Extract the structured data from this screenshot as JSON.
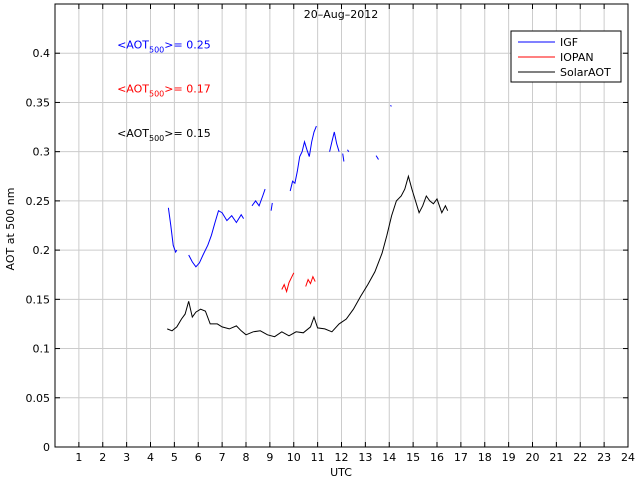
{
  "chart_data": {
    "type": "line",
    "title": "20–Aug–2012",
    "xlabel": "UTC",
    "ylabel": "AOT at 500 nm",
    "xlim": [
      0,
      24
    ],
    "ylim": [
      0,
      0.45
    ],
    "xticks": [
      1,
      2,
      3,
      4,
      5,
      6,
      7,
      8,
      9,
      10,
      11,
      12,
      13,
      14,
      15,
      16,
      17,
      18,
      19,
      20,
      21,
      22,
      23,
      24
    ],
    "yticks": [
      0,
      0.05,
      0.1,
      0.15,
      0.2,
      0.25,
      0.3,
      0.35,
      0.4
    ],
    "ytick_labels": [
      "0",
      "0.05",
      "0.1",
      "0.15",
      "0.2",
      "0.25",
      "0.3",
      "0.35",
      "0.4"
    ],
    "grid": true,
    "legend_position": "top-right",
    "annotations": [
      {
        "pre": "<AOT",
        "sub": "500",
        "post": ">= 0.25",
        "color": "#0000ff",
        "x": 2.6,
        "y": 0.405
      },
      {
        "pre": "<AOT",
        "sub": "500",
        "post": ">= 0.17",
        "color": "#ff0000",
        "x": 2.6,
        "y": 0.36
      },
      {
        "pre": "<AOT",
        "sub": "500",
        "post": ">= 0.15",
        "color": "#000000",
        "x": 2.6,
        "y": 0.315
      }
    ],
    "series": [
      {
        "name": "IGF",
        "color": "#0000ff",
        "segments": [
          [
            [
              4.75,
              0.243
            ],
            [
              4.85,
              0.225
            ],
            [
              4.95,
              0.205
            ],
            [
              5.05,
              0.198
            ],
            [
              5.1,
              0.2
            ]
          ],
          [
            [
              5.6,
              0.195
            ],
            [
              5.75,
              0.188
            ],
            [
              5.9,
              0.183
            ],
            [
              6.05,
              0.187
            ],
            [
              6.2,
              0.195
            ],
            [
              6.4,
              0.205
            ],
            [
              6.55,
              0.215
            ],
            [
              6.7,
              0.228
            ],
            [
              6.85,
              0.24
            ],
            [
              7.0,
              0.238
            ],
            [
              7.2,
              0.23
            ],
            [
              7.4,
              0.235
            ],
            [
              7.6,
              0.228
            ],
            [
              7.8,
              0.236
            ],
            [
              7.9,
              0.232
            ]
          ],
          [
            [
              8.25,
              0.245
            ],
            [
              8.4,
              0.25
            ],
            [
              8.55,
              0.245
            ],
            [
              8.7,
              0.255
            ],
            [
              8.8,
              0.262
            ]
          ],
          [
            [
              9.05,
              0.24
            ],
            [
              9.1,
              0.248
            ]
          ],
          [
            [
              9.85,
              0.26
            ],
            [
              9.95,
              0.27
            ],
            [
              10.05,
              0.268
            ],
            [
              10.15,
              0.28
            ],
            [
              10.25,
              0.295
            ],
            [
              10.35,
              0.3
            ],
            [
              10.45,
              0.31
            ],
            [
              10.55,
              0.302
            ],
            [
              10.65,
              0.295
            ],
            [
              10.75,
              0.31
            ],
            [
              10.85,
              0.32
            ],
            [
              10.95,
              0.326
            ]
          ],
          [
            [
              11.5,
              0.3
            ],
            [
              11.6,
              0.31
            ],
            [
              11.7,
              0.32
            ],
            [
              11.8,
              0.308
            ],
            [
              11.9,
              0.3
            ]
          ],
          [
            [
              12.05,
              0.298
            ],
            [
              12.1,
              0.29
            ]
          ],
          [
            [
              12.25,
              0.302
            ],
            [
              12.3,
              0.3
            ]
          ],
          [
            [
              13.45,
              0.296
            ],
            [
              13.55,
              0.292
            ]
          ]
        ]
      },
      {
        "name": "IOPAN",
        "color": "#ff0000",
        "segments": [
          [
            [
              9.5,
              0.16
            ],
            [
              9.6,
              0.165
            ],
            [
              9.7,
              0.158
            ],
            [
              9.8,
              0.167
            ],
            [
              9.9,
              0.172
            ],
            [
              10.0,
              0.177
            ]
          ],
          [
            [
              10.5,
              0.163
            ],
            [
              10.6,
              0.17
            ],
            [
              10.7,
              0.166
            ],
            [
              10.8,
              0.173
            ],
            [
              10.9,
              0.168
            ]
          ]
        ]
      },
      {
        "name": "SolarAOT",
        "color": "#000000",
        "segments": [
          [
            [
              4.7,
              0.12
            ],
            [
              4.9,
              0.118
            ],
            [
              5.1,
              0.122
            ],
            [
              5.3,
              0.13
            ],
            [
              5.45,
              0.135
            ],
            [
              5.6,
              0.148
            ],
            [
              5.75,
              0.132
            ],
            [
              5.9,
              0.137
            ],
            [
              6.1,
              0.14
            ],
            [
              6.3,
              0.138
            ],
            [
              6.5,
              0.125
            ],
            [
              6.8,
              0.125
            ],
            [
              7.0,
              0.122
            ],
            [
              7.3,
              0.12
            ],
            [
              7.6,
              0.123
            ],
            [
              7.8,
              0.118
            ],
            [
              8.0,
              0.114
            ],
            [
              8.3,
              0.117
            ],
            [
              8.6,
              0.118
            ],
            [
              8.9,
              0.114
            ],
            [
              9.2,
              0.112
            ],
            [
              9.5,
              0.117
            ],
            [
              9.8,
              0.113
            ],
            [
              10.1,
              0.117
            ],
            [
              10.4,
              0.116
            ],
            [
              10.7,
              0.122
            ],
            [
              10.85,
              0.132
            ],
            [
              11.0,
              0.121
            ],
            [
              11.3,
              0.12
            ],
            [
              11.6,
              0.117
            ],
            [
              11.9,
              0.125
            ],
            [
              12.2,
              0.13
            ],
            [
              12.5,
              0.14
            ],
            [
              12.8,
              0.153
            ],
            [
              13.1,
              0.165
            ],
            [
              13.4,
              0.178
            ],
            [
              13.7,
              0.197
            ],
            [
              13.9,
              0.215
            ],
            [
              14.1,
              0.235
            ],
            [
              14.3,
              0.25
            ],
            [
              14.5,
              0.255
            ],
            [
              14.65,
              0.262
            ],
            [
              14.8,
              0.275
            ],
            [
              14.95,
              0.262
            ],
            [
              15.1,
              0.25
            ],
            [
              15.25,
              0.238
            ],
            [
              15.4,
              0.245
            ],
            [
              15.55,
              0.255
            ],
            [
              15.7,
              0.25
            ],
            [
              15.85,
              0.247
            ],
            [
              16.0,
              0.252
            ],
            [
              16.2,
              0.238
            ],
            [
              16.35,
              0.245
            ],
            [
              16.45,
              0.24
            ]
          ]
        ]
      }
    ],
    "stray_marks": [
      {
        "color": "#0000ff",
        "x": 14.05,
        "y": 0.347
      }
    ]
  }
}
